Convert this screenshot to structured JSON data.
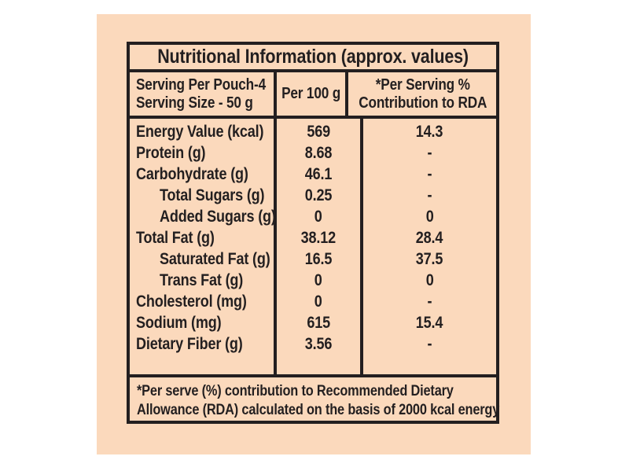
{
  "label": {
    "title": "Nutritional Information (approx. values)",
    "header": {
      "col1_line1": "Serving Per Pouch-4",
      "col1_line2": "Serving Size - 50 g",
      "col2": "Per 100 g",
      "col3_line1": "*Per Serving %",
      "col3_line2": "Contribution to RDA"
    },
    "rows": [
      {
        "nutrient": "Energy Value (kcal)",
        "per_100g": "569",
        "rda_percent": "14.3"
      },
      {
        "nutrient": "Protein (g)",
        "per_100g": "8.68",
        "rda_percent": "-"
      },
      {
        "nutrient": "Carbohydrate (g)",
        "per_100g": "46.1",
        "rda_percent": "-"
      },
      {
        "nutrient": "Total Sugars (g)",
        "per_100g": "0.25",
        "rda_percent": "-"
      },
      {
        "nutrient": "Added Sugars (g)",
        "per_100g": "0",
        "rda_percent": "0"
      },
      {
        "nutrient": "Total Fat (g)",
        "per_100g": "38.12",
        "rda_percent": "28.4"
      },
      {
        "nutrient": "Saturated Fat (g)",
        "per_100g": "16.5",
        "rda_percent": "37.5"
      },
      {
        "nutrient": "Trans Fat (g)",
        "per_100g": "0",
        "rda_percent": "0"
      },
      {
        "nutrient": "Cholesterol (mg)",
        "per_100g": "0",
        "rda_percent": "-"
      },
      {
        "nutrient": "Sodium (mg)",
        "per_100g": "615",
        "rda_percent": "15.4"
      },
      {
        "nutrient": "Dietary Fiber (g)",
        "per_100g": "3.56",
        "rda_percent": "-"
      }
    ],
    "footnote": {
      "line1": "*Per serve (%) contribution to Recommended Dietary",
      "line2": "Allowance (RDA) calculated on the basis of 2000 kcal energy"
    },
    "colors": {
      "label_background": "#fbd9bc",
      "text": "#231f20",
      "border": "#231f20",
      "page_background": "#ffffff"
    }
  }
}
